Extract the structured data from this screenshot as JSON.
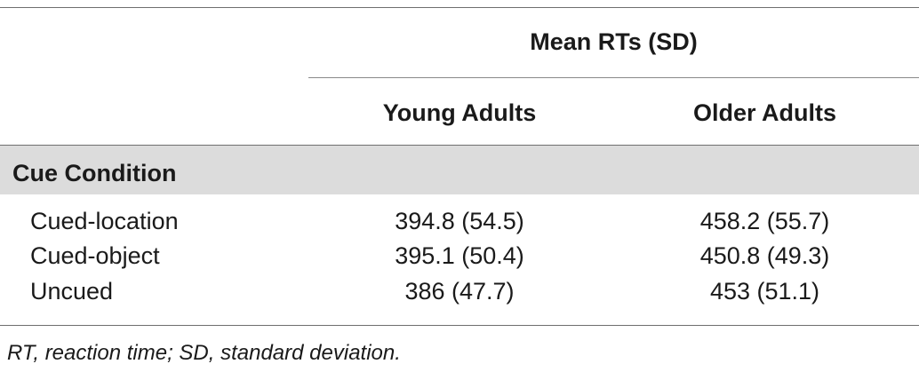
{
  "table": {
    "group_header": "Mean RTs (SD)",
    "columns": [
      "Young Adults",
      "Older Adults"
    ],
    "section_label": "Cue Condition",
    "rows": [
      {
        "label": "Cued-location",
        "young": "394.8 (54.5)",
        "older": "458.2 (55.7)"
      },
      {
        "label": "Cued-object",
        "young": "395.1 (50.4)",
        "older": "450.8 (49.3)"
      },
      {
        "label": "Uncued",
        "young": "386 (47.7)",
        "older": "453 (51.1)"
      }
    ]
  },
  "footnote": "RT, reaction time; SD, standard deviation."
}
